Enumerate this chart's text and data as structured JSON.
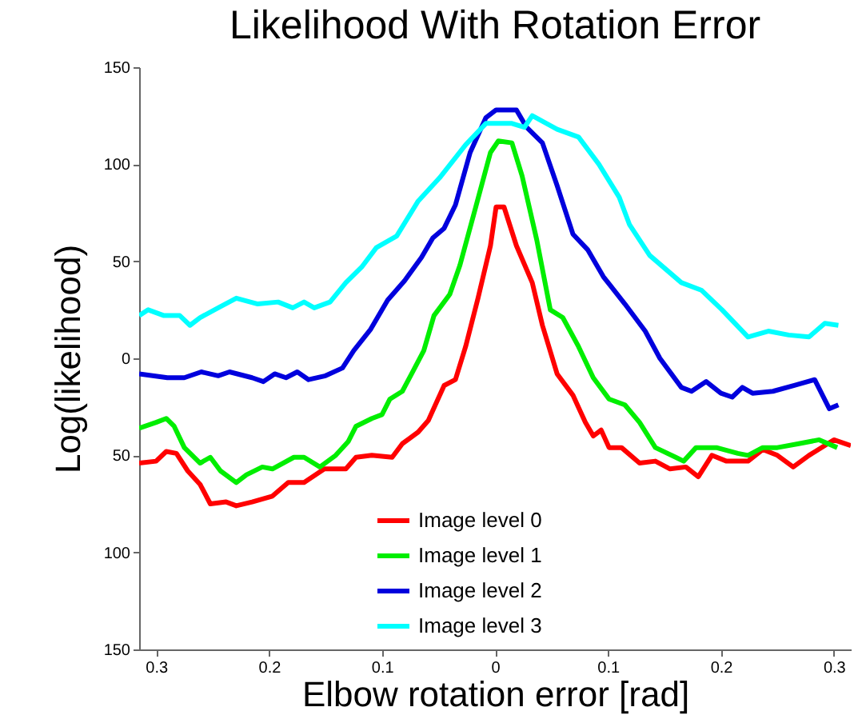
{
  "chart_data": {
    "type": "line",
    "title": "Likelihood With Rotation Error",
    "xlabel": "Elbow rotation error [rad]",
    "ylabel": "Log(likelihood)",
    "xlim": [
      -0.315,
      0.315
    ],
    "xticks": [
      {
        "value": -0.3,
        "label": "0.3"
      },
      {
        "value": -0.2,
        "label": "0.2"
      },
      {
        "value": -0.1,
        "label": "0.1"
      },
      0,
      0.1,
      0.2,
      0.3
    ],
    "ylim": [
      -150,
      150
    ],
    "yticks": [
      {
        "value": -150,
        "label": "150"
      },
      {
        "value": -100,
        "label": "100"
      },
      {
        "value": -50,
        "label": "50"
      },
      0,
      50,
      100,
      150
    ],
    "grid": false,
    "legend": "bottom",
    "line_style": "solid",
    "series": [
      {
        "name": "Image level 0",
        "color": "#ff0000",
        "x": [
          -0.315,
          -0.3,
          -0.291,
          -0.282,
          -0.272,
          -0.261,
          -0.252,
          -0.238,
          -0.229,
          -0.215,
          -0.197,
          -0.183,
          -0.169,
          -0.151,
          -0.132,
          -0.123,
          -0.109,
          -0.091,
          -0.082,
          -0.068,
          -0.059,
          -0.045,
          -0.035,
          -0.026,
          -0.015,
          -0.004,
          0.001,
          0.008,
          0.019,
          0.033,
          0.042,
          0.055,
          0.069,
          0.08,
          0.087,
          0.094,
          0.101,
          0.112,
          0.128,
          0.142,
          0.155,
          0.169,
          0.18,
          0.192,
          0.205,
          0.224,
          0.237,
          0.25,
          0.264,
          0.278,
          0.3,
          0.315
        ],
        "values": [
          -54,
          -53,
          -48,
          -49,
          -58,
          -65,
          -75,
          -74,
          -76,
          -74,
          -71,
          -64,
          -64,
          -57,
          -57,
          -51,
          -50,
          -51,
          -44,
          -38,
          -32,
          -14,
          -11,
          6,
          31,
          58,
          78,
          78,
          58,
          39,
          17,
          -8,
          -19,
          -33,
          -40,
          -37,
          -46,
          -46,
          -54,
          -53,
          -57,
          -56,
          -61,
          -50,
          -53,
          -53,
          -47,
          -50,
          -56,
          -50,
          -42,
          -45
        ]
      },
      {
        "name": "Image level 1",
        "color": "#00ee00",
        "x": [
          -0.315,
          -0.3,
          -0.291,
          -0.284,
          -0.275,
          -0.261,
          -0.252,
          -0.243,
          -0.229,
          -0.22,
          -0.206,
          -0.197,
          -0.178,
          -0.169,
          -0.155,
          -0.141,
          -0.13,
          -0.123,
          -0.109,
          -0.1,
          -0.093,
          -0.082,
          -0.072,
          -0.063,
          -0.054,
          -0.04,
          -0.031,
          -0.017,
          -0.004,
          0.003,
          0.015,
          0.024,
          0.037,
          0.049,
          0.06,
          0.074,
          0.087,
          0.101,
          0.115,
          0.128,
          0.142,
          0.16,
          0.167,
          0.178,
          0.196,
          0.215,
          0.224,
          0.237,
          0.25,
          0.269,
          0.287,
          0.303
        ],
        "values": [
          -36,
          -33,
          -31,
          -35,
          -46,
          -54,
          -51,
          -58,
          -64,
          -60,
          -56,
          -57,
          -51,
          -51,
          -56,
          -50,
          -43,
          -35,
          -31,
          -29,
          -21,
          -17,
          -6,
          4,
          22,
          33,
          48,
          78,
          106,
          112,
          111,
          94,
          61,
          25,
          21,
          6,
          -10,
          -21,
          -24,
          -33,
          -46,
          -51,
          -53,
          -46,
          -46,
          -49,
          -50,
          -46,
          -46,
          -44,
          -42,
          -46
        ]
      },
      {
        "name": "Image level 2",
        "color": "#0000dd",
        "x": [
          -0.315,
          -0.29,
          -0.275,
          -0.26,
          -0.245,
          -0.235,
          -0.215,
          -0.205,
          -0.195,
          -0.185,
          -0.175,
          -0.165,
          -0.15,
          -0.135,
          -0.125,
          -0.11,
          -0.095,
          -0.08,
          -0.065,
          -0.055,
          -0.045,
          -0.035,
          -0.022,
          -0.008,
          0.001,
          0.019,
          0.028,
          0.042,
          0.055,
          0.069,
          0.082,
          0.096,
          0.115,
          0.133,
          0.146,
          0.165,
          0.174,
          0.187,
          0.2,
          0.21,
          0.219,
          0.228,
          0.246,
          0.265,
          0.283,
          0.296,
          0.304
        ],
        "values": [
          -8,
          -10,
          -10,
          -7,
          -9,
          -7,
          -10,
          -12,
          -8,
          -10,
          -7,
          -11,
          -9,
          -5,
          4,
          15,
          30,
          40,
          52,
          62,
          67,
          79,
          106,
          124,
          128,
          128,
          119,
          111,
          89,
          64,
          56,
          42,
          28,
          14,
          0,
          -15,
          -17,
          -12,
          -18,
          -20,
          -15,
          -18,
          -17,
          -14,
          -11,
          -26,
          -24
        ]
      },
      {
        "name": "Image level 3",
        "color": "#00ffff",
        "x": [
          -0.315,
          -0.307,
          -0.293,
          -0.279,
          -0.27,
          -0.261,
          -0.245,
          -0.229,
          -0.21,
          -0.192,
          -0.179,
          -0.169,
          -0.16,
          -0.146,
          -0.132,
          -0.118,
          -0.105,
          -0.087,
          -0.068,
          -0.049,
          -0.026,
          -0.008,
          0.015,
          0.026,
          0.033,
          0.055,
          0.074,
          0.092,
          0.11,
          0.119,
          0.137,
          0.151,
          0.165,
          0.183,
          0.201,
          0.224,
          0.242,
          0.26,
          0.278,
          0.292,
          0.304
        ],
        "values": [
          22,
          25,
          22,
          22,
          17,
          21,
          26,
          31,
          28,
          29,
          26,
          29,
          26,
          29,
          39,
          47,
          57,
          63,
          81,
          93,
          110,
          121,
          121,
          119,
          125,
          118,
          114,
          100,
          83,
          69,
          53,
          46,
          39,
          35,
          25,
          11,
          14,
          12,
          11,
          18,
          17
        ]
      }
    ]
  }
}
